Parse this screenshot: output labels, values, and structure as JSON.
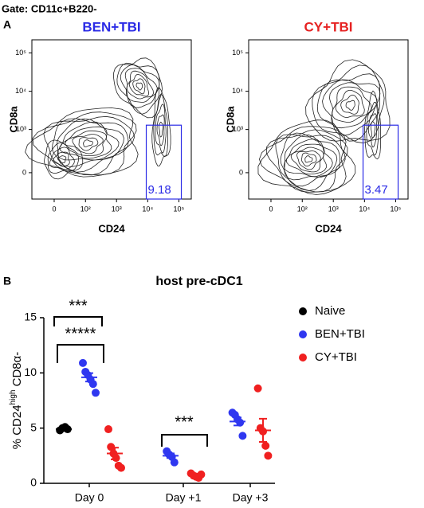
{
  "header": {
    "gate": "Gate: CD11c+B220-",
    "panel_a": "A",
    "panel_b": "B"
  },
  "chart_data": [
    {
      "type": "contour",
      "title": "BEN+TBI",
      "title_color": "#2b2be6",
      "xlabel": "CD24",
      "ylabel": "CD8a",
      "xscale": "biexponential",
      "yscale": "biexponential",
      "xlim": [
        -50,
        250000
      ],
      "ylim": [
        -350,
        220000
      ],
      "xticks": [
        0,
        {
          "value": 100,
          "label": "10²"
        },
        {
          "value": 1000,
          "label": "10³"
        },
        {
          "value": 10000,
          "label": "10⁴"
        },
        {
          "value": 100000,
          "label": "10⁵"
        }
      ],
      "yticks": [
        0,
        {
          "value": 1000,
          "label": "10³"
        },
        {
          "value": 10000,
          "label": "10⁴"
        },
        {
          "value": 100000,
          "label": "10⁵"
        }
      ],
      "gate": {
        "x": [
          9000,
          120000
        ],
        "y": [
          -350,
          1300
        ],
        "percent": 9.18,
        "color": "#2b2be6"
      }
    },
    {
      "type": "contour",
      "title": "CY+TBI",
      "title_color": "#e62222",
      "xlabel": "CD24",
      "ylabel": "CD8a",
      "xscale": "biexponential",
      "yscale": "biexponential",
      "xlim": [
        -50,
        250000
      ],
      "ylim": [
        -350,
        220000
      ],
      "xticks": [
        0,
        {
          "value": 100,
          "label": "10²"
        },
        {
          "value": 1000,
          "label": "10³"
        },
        {
          "value": 10000,
          "label": "10⁴"
        },
        {
          "value": 100000,
          "label": "10⁵"
        }
      ],
      "yticks": [
        0,
        {
          "value": 1000,
          "label": "10³"
        },
        {
          "value": 10000,
          "label": "10⁴"
        },
        {
          "value": 100000,
          "label": "10⁵"
        }
      ],
      "gate": {
        "x": [
          9000,
          120000
        ],
        "y": [
          -350,
          1300
        ],
        "percent": 3.47,
        "color": "#2b2be6"
      }
    },
    {
      "type": "dot",
      "title": "host pre-cDC1",
      "ylabel": {
        "main": "% CD24",
        "sup": "high",
        "end": " CD8α-"
      },
      "categories": [
        "Day 0",
        "Day +1",
        "Day +3"
      ],
      "ylim": [
        0,
        15
      ],
      "yticks": [
        0,
        5,
        10,
        15
      ],
      "legend": "right",
      "series": [
        {
          "name": "Naive",
          "color": "#000000",
          "values": [
            [
              4.8,
              5.0,
              5.1,
              4.9
            ],
            null,
            null
          ],
          "mean": [
            4.9,
            null,
            null
          ],
          "sem": [
            0.07,
            null,
            null
          ]
        },
        {
          "name": "BEN+TBI",
          "color": "#2f37f0",
          "values": [
            [
              10.9,
              10.1,
              9.8,
              9.4,
              9.0,
              8.2
            ],
            [
              2.9,
              2.6,
              2.4,
              1.9
            ],
            [
              6.4,
              6.2,
              5.8,
              5.5,
              4.3
            ]
          ],
          "mean": [
            9.6,
            2.5,
            5.6
          ],
          "sem": [
            0.38,
            0.21,
            0.36
          ]
        },
        {
          "name": "CY+TBI",
          "color": "#f02020",
          "values": [
            [
              4.9,
              3.3,
              2.7,
              2.3,
              1.6,
              1.4
            ],
            [
              0.9,
              0.7,
              0.6,
              0.5,
              0.8
            ],
            [
              8.6,
              5.0,
              4.7,
              3.4,
              2.5
            ]
          ],
          "mean": [
            2.7,
            0.7,
            4.8
          ],
          "sem": [
            0.53,
            0.07,
            1.05
          ]
        }
      ],
      "annotations": [
        "***",
        "*****",
        "***"
      ]
    }
  ]
}
